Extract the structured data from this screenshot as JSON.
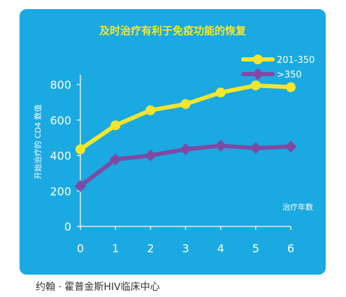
{
  "footer": {
    "source": "约翰 · 霍普金斯HIV临床中心"
  },
  "chart_data": {
    "type": "line",
    "title": "及时治疗有利于免疫功能的恢复",
    "xlabel": "治疗年数",
    "ylabel": "开始治疗的 CD4 数值",
    "x": [
      0,
      1,
      2,
      3,
      4,
      5,
      6
    ],
    "xlim": [
      0,
      6
    ],
    "ylim": [
      0,
      800
    ],
    "yticks": [
      0,
      200,
      400,
      600,
      800
    ],
    "grid": false,
    "legend_position": "top-right",
    "series": [
      {
        "name": "201-350",
        "values": [
          435,
          570,
          655,
          690,
          755,
          795,
          785
        ],
        "color": "#f5e62c",
        "marker": "circle"
      },
      {
        "name": ">350",
        "values": [
          228,
          378,
          400,
          435,
          455,
          442,
          450
        ],
        "color": "#7e4aa3",
        "marker": "diamond"
      }
    ],
    "colors": {
      "background": "#1ba9e2",
      "text": "#ffffff",
      "title": "#f5e62c"
    }
  }
}
